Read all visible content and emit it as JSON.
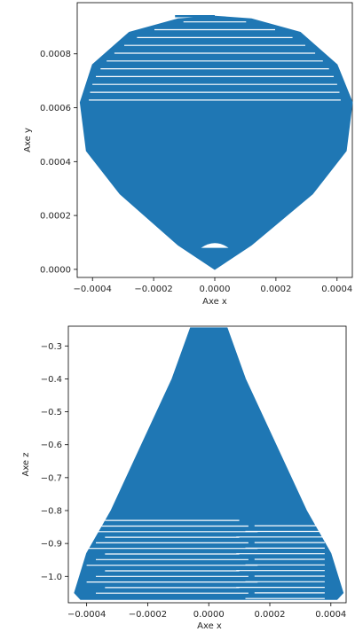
{
  "chart_data": [
    {
      "type": "scatter",
      "title": "",
      "xlabel": "Axe x",
      "ylabel": "Axe y",
      "xlim": [
        -0.00045,
        0.00045
      ],
      "ylim": [
        -3e-05,
        0.00099
      ],
      "xticks": [
        -0.0004,
        -0.0002,
        0.0,
        0.0002,
        0.0004
      ],
      "xtick_labels": [
        "−0.0004",
        "−0.0002",
        "0.0000",
        "0.0002",
        "0.0004"
      ],
      "yticks": [
        0.0,
        0.0002,
        0.0004,
        0.0006,
        0.0008
      ],
      "ytick_labels": [
        "0.0000",
        "0.0002",
        "0.0004",
        "0.0006",
        "0.0008"
      ],
      "grid": false,
      "series": [
        {
          "color": "#1f77b4",
          "outline_x": [
            0.0,
            -0.00012,
            -0.00031,
            -0.00042,
            -0.00044,
            -0.0004,
            -0.00028,
            -0.00012,
            0.0,
            0.00012,
            0.00028,
            0.0004,
            0.00045,
            0.00043,
            0.00032,
            0.00012,
            0.0
          ],
          "outline_y": [
            0.0,
            9e-05,
            0.00028,
            0.00044,
            0.00062,
            0.00076,
            0.00088,
            0.00093,
            0.00094,
            0.00093,
            0.00088,
            0.00076,
            0.00062,
            0.00044,
            0.00028,
            9e-05,
            0.0
          ]
        }
      ]
    },
    {
      "type": "scatter",
      "title": "",
      "xlabel": "Axe x",
      "ylabel": "Axe z",
      "xlim": [
        -0.00046,
        0.00045
      ],
      "ylim": [
        -1.08,
        -0.24
      ],
      "xticks": [
        -0.0004,
        -0.0002,
        0.0,
        0.0002,
        0.0004
      ],
      "xtick_labels": [
        "−0.0004",
        "−0.0002",
        "0.0000",
        "0.0002",
        "0.0004"
      ],
      "yticks": [
        -0.3,
        -0.4,
        -0.5,
        -0.6,
        -0.7,
        -0.8,
        -0.9,
        -1.0
      ],
      "ytick_labels": [
        "−0.3",
        "−0.4",
        "−0.5",
        "−0.6",
        "−0.7",
        "−0.8",
        "−0.9",
        "−1.0"
      ],
      "grid": false,
      "series": [
        {
          "color": "#1f77b4",
          "outline_x": [
            -6e-05,
            6e-05,
            0.00012,
            0.00022,
            0.00032,
            0.0004,
            0.00044,
            0.00042,
            0.0,
            -0.00042,
            -0.00044,
            -0.0004,
            -0.00032,
            -0.00022,
            -0.00012,
            -6e-05
          ],
          "outline_z": [
            -0.245,
            -0.245,
            -0.4,
            -0.6,
            -0.8,
            -0.93,
            -1.05,
            -1.07,
            -1.07,
            -1.07,
            -1.05,
            -0.93,
            -0.8,
            -0.6,
            -0.4,
            -0.245
          ]
        }
      ]
    }
  ]
}
